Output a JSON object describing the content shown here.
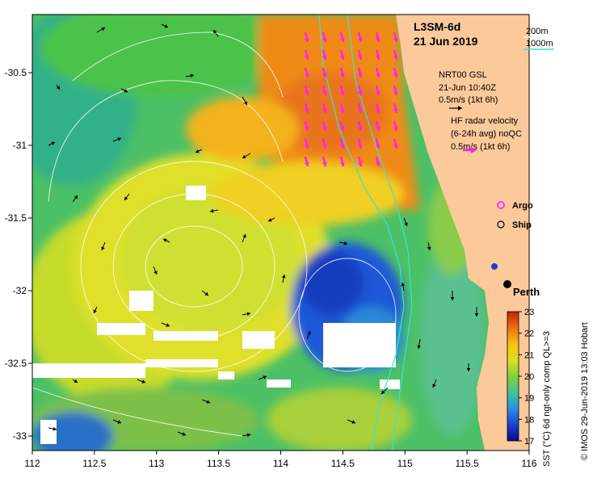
{
  "title": {
    "product": "L3SM-6d",
    "date": "21 Jun 2019"
  },
  "scale_legend": {
    "line1": "200m",
    "line2": "1000m",
    "line1_color": "#ffffff",
    "line2_color": "#40e0d0"
  },
  "gsl_legend": {
    "line1": "NRT00 GSL",
    "line2": "21-Jun 10:40Z",
    "line3": "0.5m/s (1kt 6h)"
  },
  "radar_legend": {
    "line1": "HF radar velocity",
    "line2": "(6-24h avg) noQC",
    "line3": "0.5m/s (1kt 6h)"
  },
  "markers": {
    "argo_label": "Argo",
    "ship_label": "Ship",
    "city_label": "Perth",
    "argo_color": "#ff33ff"
  },
  "colorbar": {
    "label": "SST (°C) 6d ngt-only comp QL>=3",
    "ticks": [
      "17",
      "18",
      "19",
      "20",
      "21",
      "22",
      "23"
    ]
  },
  "credit": "© IMOS 29-Jun-2019 13:03 Hobart",
  "axes": {
    "x_ticks": [
      "112",
      "112.5",
      "113",
      "113.5",
      "114",
      "114.5",
      "115",
      "115.5",
      "116"
    ],
    "y_ticks": [
      "-30.5",
      "-31",
      "-31.5",
      "-32",
      "-32.5",
      "-33"
    ]
  },
  "chart_data": {
    "type": "heatmap",
    "xlim": [
      112,
      116
    ],
    "ylim": [
      -33.1,
      -30.1
    ],
    "x_ticks": [
      112,
      112.5,
      113,
      113.5,
      114,
      114.5,
      115,
      115.5,
      116
    ],
    "y_ticks": [
      -30.5,
      -31,
      -31.5,
      -32,
      -32.5,
      -33
    ],
    "colorbar_range": [
      17,
      23
    ],
    "colors": {
      "land": "#fcc99a",
      "warm": "#f08a16",
      "cold": "#1848d8",
      "arrow_radar": "#ff22ee",
      "arrow_gsl": "#000000"
    }
  }
}
